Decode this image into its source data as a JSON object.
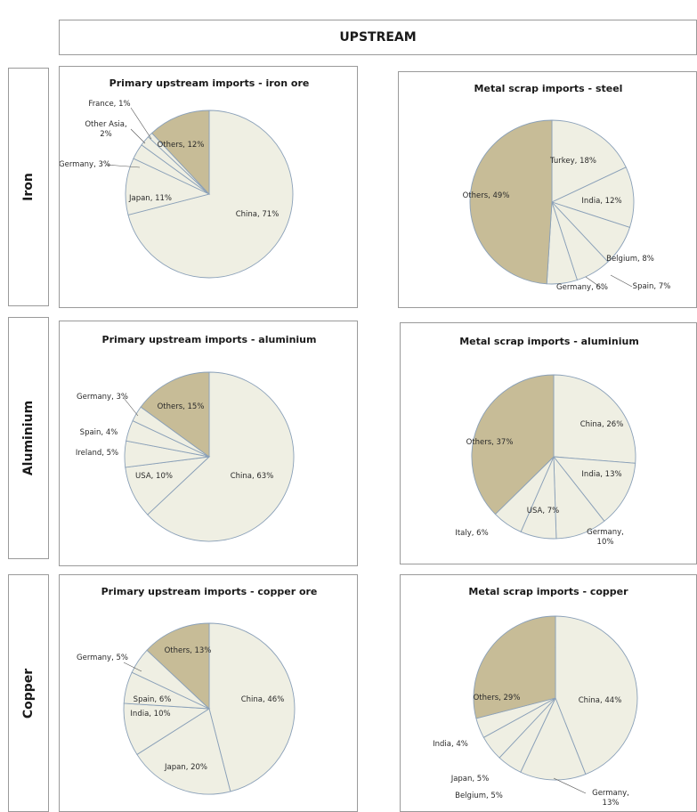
{
  "header": {
    "title": "UPSTREAM"
  },
  "rows": [
    {
      "label": "Iron"
    },
    {
      "label": "Aluminium"
    },
    {
      "label": "Copper"
    }
  ],
  "colors": {
    "slice": "#efefe3",
    "others": "#c7bc97",
    "edge": "#8aa0b8"
  },
  "chart_data": [
    {
      "type": "pie",
      "title": "Primary upstream imports - iron ore",
      "slices": [
        {
          "name": "China",
          "value": 71,
          "text": "China, 71%"
        },
        {
          "name": "Japan",
          "value": 11,
          "text": "Japan, 11%"
        },
        {
          "name": "Germany",
          "value": 3,
          "text": "Germany, 3%"
        },
        {
          "name": "Other Asia",
          "value": 2,
          "text": "Other Asia, 2%"
        },
        {
          "name": "France",
          "value": 1,
          "text": "France, 1%"
        },
        {
          "name": "Others",
          "value": 12,
          "text": "Others, 12%"
        }
      ]
    },
    {
      "type": "pie",
      "title": "Metal scrap imports - steel",
      "slices": [
        {
          "name": "Turkey",
          "value": 18,
          "text": "Turkey, 18%"
        },
        {
          "name": "India",
          "value": 12,
          "text": "India, 12%"
        },
        {
          "name": "Belgium",
          "value": 8,
          "text": "Belgium, 8%"
        },
        {
          "name": "Spain",
          "value": 7,
          "text": "Spain, 7%"
        },
        {
          "name": "Germany",
          "value": 6,
          "text": "Germany, 6%"
        },
        {
          "name": "Others",
          "value": 49,
          "text": "Others, 49%"
        }
      ]
    },
    {
      "type": "pie",
      "title": "Primary upstream imports - aluminium",
      "slices": [
        {
          "name": "China",
          "value": 63,
          "text": "China, 63%"
        },
        {
          "name": "USA",
          "value": 10,
          "text": "USA, 10%"
        },
        {
          "name": "Ireland",
          "value": 5,
          "text": "Ireland, 5%"
        },
        {
          "name": "Spain",
          "value": 4,
          "text": "Spain, 4%"
        },
        {
          "name": "Germany",
          "value": 3,
          "text": "Germany, 3%"
        },
        {
          "name": "Others",
          "value": 15,
          "text": "Others, 15%"
        }
      ]
    },
    {
      "type": "pie",
      "title": "Metal scrap imports - aluminium",
      "slices": [
        {
          "name": "China",
          "value": 26,
          "text": "China, 26%"
        },
        {
          "name": "India",
          "value": 13,
          "text": "India, 13%"
        },
        {
          "name": "Germany",
          "value": 10,
          "text": "Germany, 10%"
        },
        {
          "name": "USA",
          "value": 7,
          "text": "USA, 7%"
        },
        {
          "name": "Italy",
          "value": 6,
          "text": "Italy, 6%"
        },
        {
          "name": "Others",
          "value": 37,
          "text": "Others, 37%"
        }
      ]
    },
    {
      "type": "pie",
      "title": "Primary upstream imports - copper ore",
      "slices": [
        {
          "name": "China",
          "value": 46,
          "text": "China, 46%"
        },
        {
          "name": "Japan",
          "value": 20,
          "text": "Japan, 20%"
        },
        {
          "name": "India",
          "value": 10,
          "text": "India, 10%"
        },
        {
          "name": "Spain",
          "value": 6,
          "text": "Spain, 6%"
        },
        {
          "name": "Germany",
          "value": 5,
          "text": "Germany, 5%"
        },
        {
          "name": "Others",
          "value": 13,
          "text": "Others, 13%"
        }
      ]
    },
    {
      "type": "pie",
      "title": "Metal scrap imports - copper",
      "slices": [
        {
          "name": "China",
          "value": 44,
          "text": "China, 44%"
        },
        {
          "name": "Germany",
          "value": 13,
          "text": "Germany, 13%"
        },
        {
          "name": "Belgium",
          "value": 5,
          "text": "Belgium, 5%"
        },
        {
          "name": "Japan",
          "value": 5,
          "text": "Japan, 5%"
        },
        {
          "name": "India",
          "value": 4,
          "text": "India, 4%"
        },
        {
          "name": "Others",
          "value": 29,
          "text": "Others, 29%"
        }
      ]
    }
  ]
}
